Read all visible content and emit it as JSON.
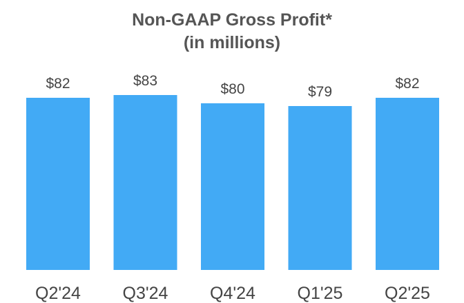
{
  "chart_data": {
    "type": "bar",
    "title": "Non-GAAP Gross Profit*",
    "subtitle": "(in millions)",
    "categories": [
      "Q2'24",
      "Q3'24",
      "Q4'24",
      "Q1'25",
      "Q2'25"
    ],
    "values": [
      82,
      83,
      80,
      79,
      82
    ],
    "value_labels": [
      "$82",
      "$83",
      "$80",
      "$79",
      "$82"
    ],
    "bar_color": "#42AAF5",
    "grid": false,
    "legend": "none"
  }
}
